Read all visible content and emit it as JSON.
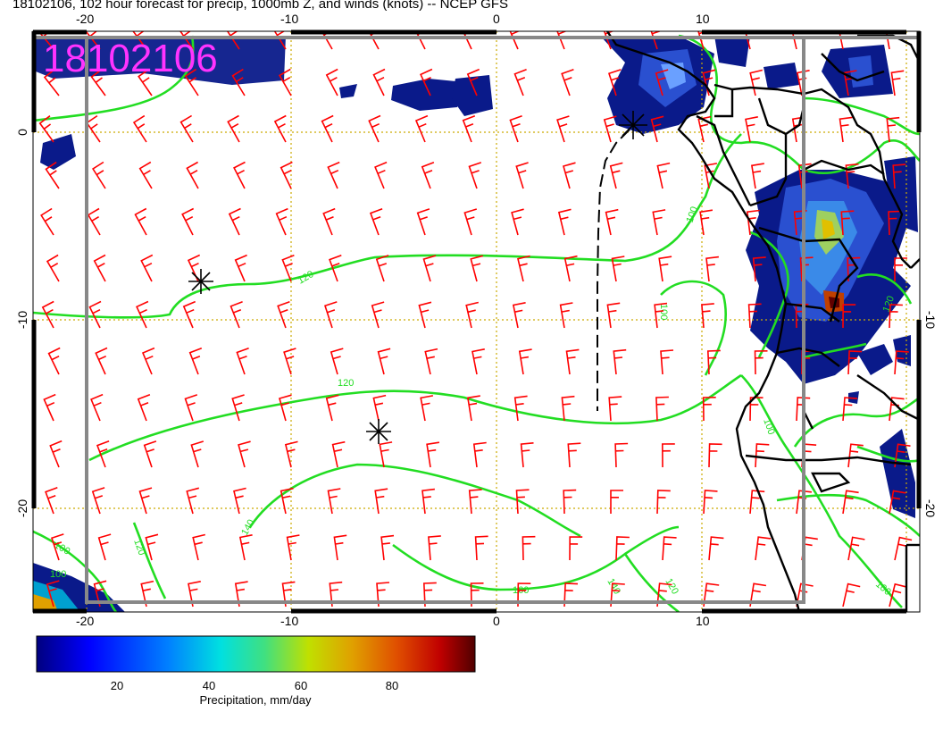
{
  "title": "18102106, 102 hour forecast for precip, 1000mb Z, and winds (knots) -- NCEP GFS",
  "stamp": "18102106",
  "stamp_color": "#ff33ff",
  "colors": {
    "wind_barb": "#ff0000",
    "contour": "#22dd22",
    "coast": "#000000",
    "grid": "#ccaa00",
    "frame": "#888888",
    "precip_low": "#0a1a8a",
    "precip_high": "#7a0000"
  },
  "axes": {
    "top_lon_labels": [
      "-20",
      "-10",
      "0",
      "10"
    ],
    "bottom_lon_labels": [
      "-20",
      "-10",
      "0",
      "10"
    ],
    "left_lat_labels": [
      "0",
      "-10",
      "-20"
    ],
    "right_lat_labels": [
      "-10",
      "-20"
    ]
  },
  "contour_labels": [
    "100",
    "120",
    "140",
    "160",
    "100",
    "120",
    "100",
    "120",
    "140",
    "100",
    "120",
    "100",
    "120",
    "100"
  ],
  "colorbar": {
    "ticks": [
      "20",
      "40",
      "60",
      "80"
    ],
    "label": "Precipitation, mm/day",
    "colors": [
      "#00007f",
      "#0000ff",
      "#0080ff",
      "#00e0e0",
      "#40e080",
      "#c0e000",
      "#e0a000",
      "#e05000",
      "#c00000",
      "#500000"
    ]
  },
  "markers": [
    "asterisk",
    "asterisk",
    "asterisk"
  ]
}
